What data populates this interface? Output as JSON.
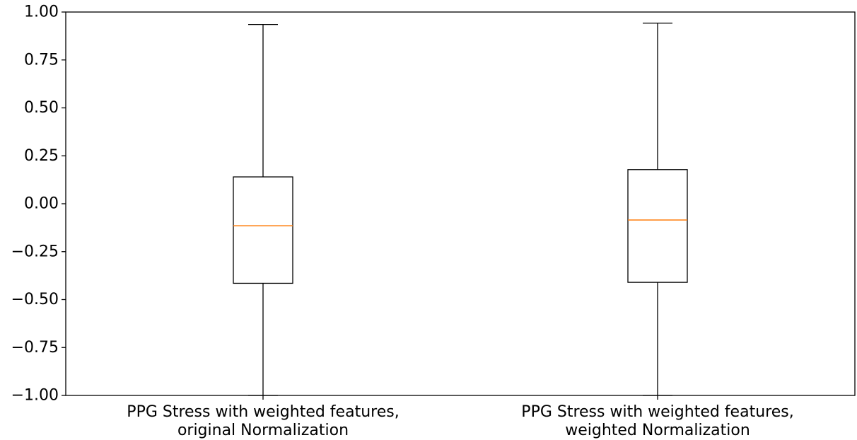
{
  "chart_data": {
    "type": "box",
    "title": "",
    "xlabel": "",
    "ylabel": "",
    "ylim": [
      -1.0,
      1.0
    ],
    "yticks": [
      1.0,
      0.75,
      0.5,
      0.25,
      0.0,
      -0.25,
      -0.5,
      -0.75,
      -1.0
    ],
    "ytick_labels": [
      "1.00",
      "0.75",
      "0.50",
      "0.25",
      "0.00",
      "−0.25",
      "−0.50",
      "−0.75",
      "−1.00"
    ],
    "grid": false,
    "legend": "none",
    "categories": [
      [
        "PPG Stress with weighted features,",
        "original Normalization"
      ],
      [
        "PPG Stress with weighted features,",
        "weighted Normalization"
      ]
    ],
    "boxes": [
      {
        "whisker_low": -1.0,
        "q1": -0.415,
        "median": -0.115,
        "q3": 0.14,
        "whisker_high": 0.935
      },
      {
        "whisker_low": -1.0,
        "q1": -0.41,
        "median": -0.085,
        "q3": 0.178,
        "whisker_high": 0.942
      }
    ],
    "colors": {
      "box": "#000000",
      "median": "#ff7f0e",
      "axis": "#000000"
    }
  }
}
